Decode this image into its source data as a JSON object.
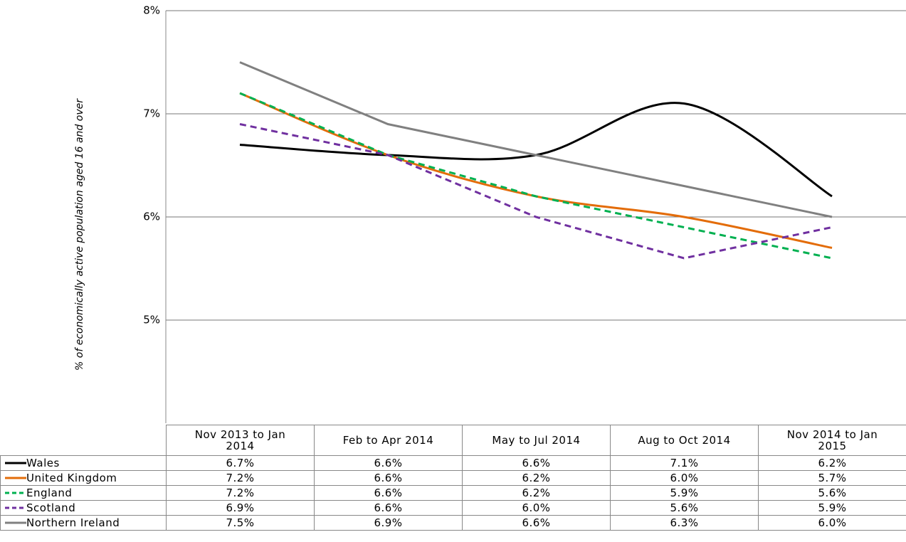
{
  "chart_data": {
    "type": "line",
    "y_label": "% of economically active population aged 16 and over",
    "categories": [
      "Nov 2013 to Jan 2014",
      "Feb to Apr 2014",
      "May to Jul 2014",
      "Aug to Oct 2014",
      "Nov 2014 to Jan 2015"
    ],
    "series": [
      {
        "name": "Wales",
        "color": "#000000",
        "style": "solid",
        "smooth": true,
        "values": [
          6.7,
          6.6,
          6.6,
          7.1,
          6.2
        ],
        "value_labels": [
          "6.7%",
          "6.6%",
          "6.6%",
          "7.1%",
          "6.2%"
        ]
      },
      {
        "name": "United Kingdom",
        "color": "#e36c09",
        "style": "solid",
        "smooth": true,
        "values": [
          7.2,
          6.6,
          6.2,
          6.0,
          5.7
        ],
        "value_labels": [
          "7.2%",
          "6.6%",
          "6.2%",
          "6.0%",
          "5.7%"
        ]
      },
      {
        "name": "England",
        "color": "#00b050",
        "style": "dashed",
        "smooth": false,
        "values": [
          7.2,
          6.6,
          6.2,
          5.9,
          5.6
        ],
        "value_labels": [
          "7.2%",
          "6.6%",
          "6.2%",
          "5.9%",
          "5.6%"
        ]
      },
      {
        "name": "Scotland",
        "color": "#7030a0",
        "style": "dashed",
        "smooth": false,
        "values": [
          6.9,
          6.6,
          6.0,
          5.6,
          5.9
        ],
        "value_labels": [
          "6.9%",
          "6.6%",
          "6.0%",
          "5.6%",
          "5.9%"
        ]
      },
      {
        "name": "Northern Ireland",
        "color": "#808080",
        "style": "solid",
        "smooth": false,
        "values": [
          7.5,
          6.9,
          6.6,
          6.3,
          6.0
        ],
        "value_labels": [
          "7.5%",
          "6.9%",
          "6.6%",
          "6.3%",
          "6.0%"
        ]
      }
    ],
    "ylim": [
      4,
      8
    ],
    "yticks": [
      {
        "value": 5,
        "label": "5%"
      },
      {
        "value": 6,
        "label": "6%"
      },
      {
        "value": 7,
        "label": "7%"
      },
      {
        "value": 8,
        "label": "8%"
      }
    ],
    "grid": true
  }
}
